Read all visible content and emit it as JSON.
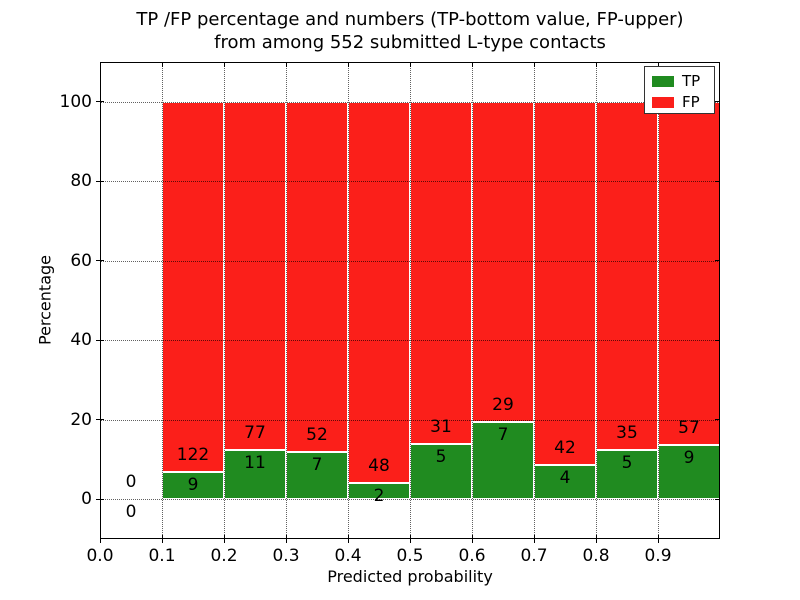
{
  "colors": {
    "tp": "#208b20",
    "fp": "#fb1f1a",
    "grid": "rgba(0,0,0,0.62)",
    "spine": "#000000",
    "background": "#ffffff",
    "bar_edge": "#ffffff"
  },
  "chart_data": {
    "type": "bar",
    "stacked": true,
    "title": "TP /FP percentage and numbers (TP-bottom value, FP-upper)\nfrom among 552 submitted L-type contacts",
    "title_line1": "TP /FP percentage and numbers (TP-bottom value, FP-upper)",
    "title_line2": "from among 552 submitted L-type contacts",
    "xlabel": "Predicted probability",
    "ylabel": "Percentage",
    "xlim": [
      0.0,
      1.0
    ],
    "ylim": [
      -10,
      110
    ],
    "x_tick_labels": [
      "0.0",
      "0.1",
      "0.2",
      "0.3",
      "0.4",
      "0.5",
      "0.6",
      "0.7",
      "0.8",
      "0.9"
    ],
    "y_tick_labels": [
      0,
      20,
      40,
      60,
      80,
      100
    ],
    "grid_style": "dotted",
    "grid_on": true,
    "total_submitted": 552,
    "legend": {
      "position": "upper-right",
      "entries": [
        {
          "label": "TP",
          "color": "#208b20"
        },
        {
          "label": "FP",
          "color": "#fb1f1a"
        }
      ]
    },
    "bins": [
      {
        "x_start": 0.0,
        "x_end": 0.1,
        "tp_count": 0,
        "fp_count": 0,
        "tp_pct": 0,
        "fp_pct": 0
      },
      {
        "x_start": 0.1,
        "x_end": 0.2,
        "tp_count": 9,
        "fp_count": 122,
        "tp_pct": 6.87,
        "fp_pct": 93.13
      },
      {
        "x_start": 0.2,
        "x_end": 0.3,
        "tp_count": 11,
        "fp_count": 77,
        "tp_pct": 12.5,
        "fp_pct": 87.5
      },
      {
        "x_start": 0.3,
        "x_end": 0.4,
        "tp_count": 7,
        "fp_count": 52,
        "tp_pct": 11.86,
        "fp_pct": 88.14
      },
      {
        "x_start": 0.4,
        "x_end": 0.5,
        "tp_count": 2,
        "fp_count": 48,
        "tp_pct": 4.0,
        "fp_pct": 96.0
      },
      {
        "x_start": 0.5,
        "x_end": 0.6,
        "tp_count": 5,
        "fp_count": 31,
        "tp_pct": 13.89,
        "fp_pct": 86.11
      },
      {
        "x_start": 0.6,
        "x_end": 0.7,
        "tp_count": 7,
        "fp_count": 29,
        "tp_pct": 19.44,
        "fp_pct": 80.56
      },
      {
        "x_start": 0.7,
        "x_end": 0.8,
        "tp_count": 4,
        "fp_count": 42,
        "tp_pct": 8.7,
        "fp_pct": 91.3
      },
      {
        "x_start": 0.8,
        "x_end": 0.9,
        "tp_count": 5,
        "fp_count": 35,
        "tp_pct": 12.5,
        "fp_pct": 87.5
      },
      {
        "x_start": 0.9,
        "x_end": 1.0,
        "tp_count": 9,
        "fp_count": 57,
        "tp_pct": 13.64,
        "fp_pct": 86.36
      }
    ]
  }
}
